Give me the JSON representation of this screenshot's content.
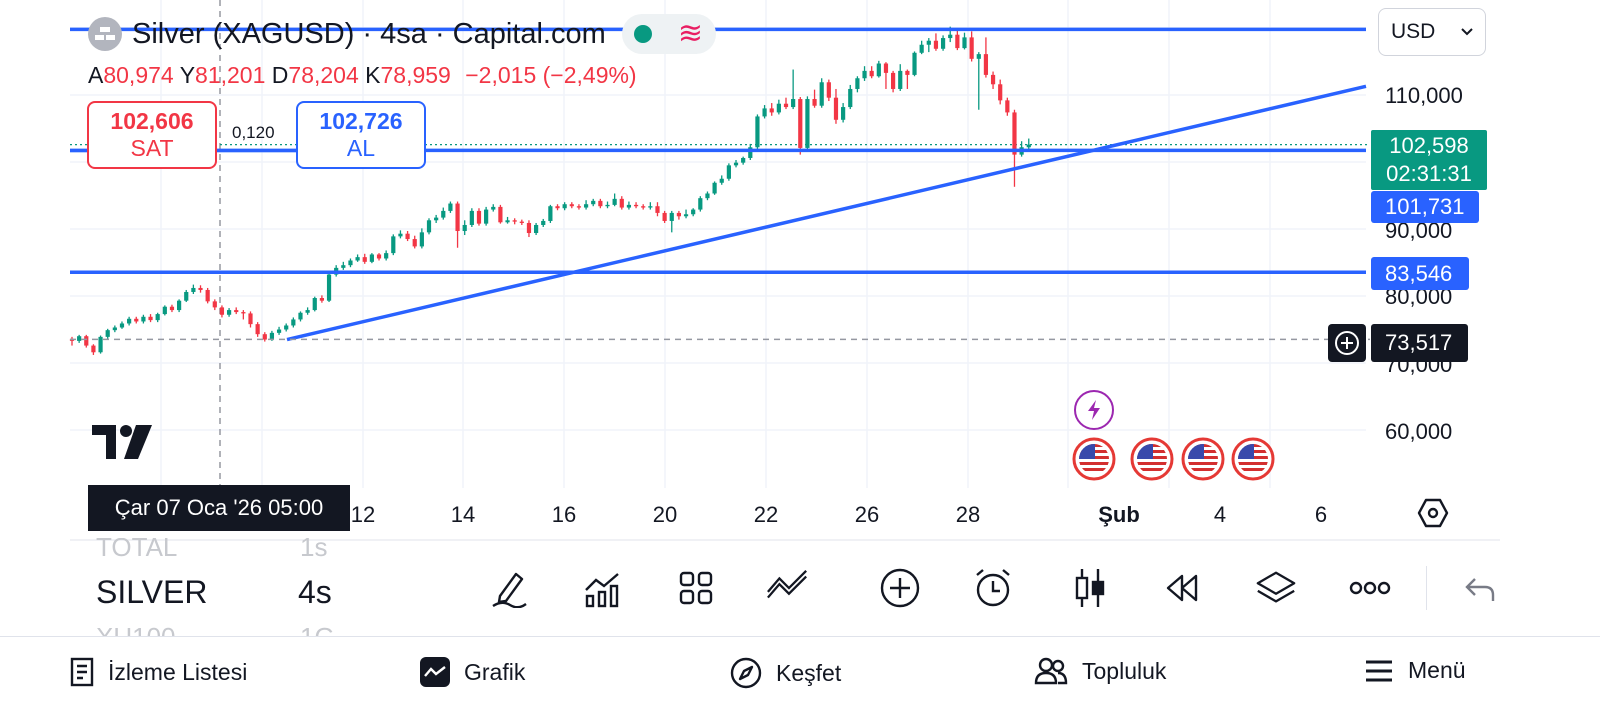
{
  "header": {
    "title": "Silver (XAGUSD) · 4sa · Capital.com",
    "status_icons": [
      "market-open-dot-icon",
      "data-wave-icon"
    ]
  },
  "ohlc": {
    "open_label": "A",
    "open": "80,974",
    "high_label": "Y",
    "high": "81,201",
    "low_label": "D",
    "low": "78,204",
    "close_label": "K",
    "close": "78,959",
    "change": "−2,015 (−2,49%)"
  },
  "trade": {
    "sell_price": "102,606",
    "sell_label": "SAT",
    "spread": "0,120",
    "buy_price": "102,726",
    "buy_label": "AL"
  },
  "currency_select": {
    "value": "USD"
  },
  "y_axis": {
    "ticks": [
      "110,000",
      "90,000",
      "80,000",
      "70,000",
      "60,000"
    ]
  },
  "price_tags": {
    "current_price": "102,598",
    "countdown": "02:31:31",
    "level_1": "101,731",
    "level_2": "83,546",
    "crosshair_price": "73,517"
  },
  "x_axis": {
    "labels": [
      "12",
      "14",
      "16",
      "20",
      "22",
      "26",
      "28",
      "Şub",
      "4",
      "6"
    ],
    "crosshair_time": "Çar 07 Oca '26   05:00"
  },
  "watchlist_peek": {
    "prev_symbol": "TOTAL",
    "prev_interval": "1s",
    "current_symbol": "SILVER",
    "current_interval": "4s",
    "next_symbol": "XU100",
    "next_interval": "1G"
  },
  "toolbar": {
    "icons": [
      "pencil-icon",
      "indicators-icon",
      "layouts-icon",
      "compare-icon",
      "add-icon",
      "alert-clock-icon",
      "candle-type-icon",
      "replay-icon",
      "layers-icon",
      "more-icon",
      "undo-icon"
    ]
  },
  "bottom_nav": {
    "watchlist": "İzleme Listesi",
    "chart": "Grafik",
    "explore": "Keşfet",
    "community": "Topluluk",
    "menu": "Menü"
  },
  "colors": {
    "up": "#089981",
    "down": "#f23645",
    "drawing_blue": "#2962ff",
    "text": "#131722"
  },
  "chart_data": {
    "type": "candlestick",
    "x_labels": [
      "12",
      "14",
      "16",
      "20",
      "22",
      "26",
      "28",
      "Şub",
      "4",
      "6"
    ],
    "y_ticks": [
      110000,
      90000,
      80000,
      70000,
      60000
    ],
    "ylim": [
      54000,
      120000
    ],
    "current_price": 102598,
    "horizontal_levels": [
      119800,
      101731,
      83546
    ],
    "crosshair_price": 73517,
    "trendline": {
      "from": {
        "x_date": "2026-01-08",
        "y": 73500
      },
      "to": {
        "x_date": "2026-02-07",
        "y": 111300
      }
    },
    "candles_4h_approx": [
      [
        73.6,
        73.3,
        72.6,
        73.9
      ],
      [
        73.3,
        74.0,
        73.0,
        74.2
      ],
      [
        74.0,
        72.6,
        72.3,
        74.2
      ],
      [
        72.6,
        71.6,
        71.2,
        72.8
      ],
      [
        71.6,
        73.9,
        71.4,
        74.1
      ],
      [
        73.9,
        74.9,
        73.6,
        75.1
      ],
      [
        74.9,
        75.3,
        74.6,
        75.6
      ],
      [
        75.3,
        75.9,
        75.1,
        76.2
      ],
      [
        75.9,
        76.6,
        75.6,
        76.9
      ],
      [
        76.6,
        76.2,
        75.9,
        76.9
      ],
      [
        76.2,
        76.9,
        75.9,
        77.2
      ],
      [
        76.9,
        76.4,
        76.1,
        77.3
      ],
      [
        76.4,
        77.3,
        76.1,
        77.5
      ],
      [
        77.3,
        78.4,
        77.1,
        78.6
      ],
      [
        78.4,
        77.9,
        77.6,
        78.7
      ],
      [
        77.9,
        79.3,
        77.6,
        79.5
      ],
      [
        79.3,
        80.6,
        79.1,
        80.9
      ],
      [
        80.6,
        81.2,
        80.3,
        81.7
      ],
      [
        81.2,
        80.9,
        80.5,
        81.6
      ],
      [
        80.9,
        79.2,
        78.9,
        81.2
      ],
      [
        79.2,
        78.3,
        77.9,
        79.5
      ],
      [
        78.3,
        77.2,
        76.8,
        78.6
      ],
      [
        77.2,
        77.9,
        76.9,
        78.2
      ],
      [
        77.9,
        77.6,
        77.3,
        78.3
      ],
      [
        77.6,
        77.4,
        76.5,
        77.9
      ],
      [
        77.4,
        75.8,
        75.3,
        77.7
      ],
      [
        75.8,
        74.3,
        73.9,
        76.1
      ],
      [
        74.3,
        73.5,
        73.2,
        74.6
      ],
      [
        73.5,
        74.5,
        73.3,
        74.8
      ],
      [
        74.5,
        75.0,
        74.2,
        75.4
      ],
      [
        75.0,
        75.6,
        74.7,
        75.9
      ],
      [
        75.6,
        76.5,
        75.3,
        76.8
      ],
      [
        76.5,
        77.5,
        76.2,
        77.7
      ],
      [
        77.5,
        77.9,
        77.2,
        78.3
      ],
      [
        77.9,
        79.7,
        77.7,
        79.9
      ],
      [
        79.7,
        79.3,
        79.0,
        80.1
      ],
      [
        79.3,
        83.2,
        79.1,
        83.5
      ],
      [
        83.2,
        84.2,
        82.9,
        84.6
      ],
      [
        84.2,
        84.6,
        83.9,
        85.1
      ],
      [
        84.6,
        85.3,
        84.3,
        85.6
      ],
      [
        85.3,
        85.8,
        85.1,
        86.2
      ],
      [
        85.8,
        85.1,
        84.8,
        86.3
      ],
      [
        85.1,
        86.2,
        84.9,
        86.4
      ],
      [
        86.2,
        85.6,
        85.3,
        86.4
      ],
      [
        85.6,
        86.4,
        85.3,
        86.8
      ],
      [
        86.4,
        88.9,
        86.1,
        89.2
      ],
      [
        88.9,
        89.3,
        88.6,
        89.8
      ],
      [
        89.3,
        88.5,
        88.2,
        89.7
      ],
      [
        88.5,
        87.4,
        87.1,
        89.0
      ],
      [
        87.4,
        89.5,
        87.1,
        90.1
      ],
      [
        89.5,
        91.3,
        89.2,
        91.6
      ],
      [
        91.3,
        91.7,
        90.9,
        92.1
      ],
      [
        91.7,
        92.7,
        91.4,
        93.2
      ],
      [
        92.7,
        93.8,
        92.4,
        94.1
      ],
      [
        93.8,
        89.7,
        87.2,
        94.1
      ],
      [
        89.7,
        90.6,
        89.1,
        91.3
      ],
      [
        90.6,
        92.7,
        90.3,
        93.1
      ],
      [
        92.7,
        90.8,
        90.5,
        93.1
      ],
      [
        90.8,
        92.9,
        90.5,
        93.3
      ],
      [
        92.9,
        93.3,
        92.6,
        93.7
      ],
      [
        93.3,
        91.0,
        90.8,
        93.6
      ],
      [
        91.0,
        91.3,
        90.8,
        91.8
      ],
      [
        91.3,
        91.1,
        90.7,
        91.6
      ],
      [
        91.1,
        90.9,
        90.6,
        91.4
      ],
      [
        90.9,
        89.4,
        88.8,
        91.3
      ],
      [
        89.4,
        90.6,
        89.1,
        90.9
      ],
      [
        90.6,
        91.2,
        90.3,
        91.5
      ],
      [
        91.2,
        93.4,
        90.9,
        93.6
      ],
      [
        93.4,
        93.1,
        92.8,
        93.7
      ],
      [
        93.1,
        93.7,
        92.8,
        94.0
      ],
      [
        93.7,
        93.4,
        93.1,
        94.0
      ],
      [
        93.4,
        93.2,
        92.9,
        93.7
      ],
      [
        93.2,
        93.7,
        92.9,
        94.3
      ],
      [
        93.7,
        94.2,
        93.4,
        94.5
      ],
      [
        94.2,
        93.4,
        93.1,
        94.5
      ],
      [
        93.4,
        93.6,
        93.1,
        94.1
      ],
      [
        93.6,
        94.5,
        93.4,
        95.3
      ],
      [
        94.5,
        93.2,
        92.9,
        94.9
      ],
      [
        93.2,
        93.6,
        92.9,
        94.1
      ],
      [
        93.6,
        93.4,
        93.1,
        94.0
      ],
      [
        93.4,
        93.2,
        92.9,
        93.7
      ],
      [
        93.2,
        93.4,
        92.9,
        94.0
      ],
      [
        93.4,
        92.4,
        91.9,
        94.0
      ],
      [
        92.4,
        91.2,
        90.9,
        92.7
      ],
      [
        91.2,
        92.4,
        89.5,
        92.7
      ],
      [
        92.4,
        91.9,
        91.4,
        92.7
      ],
      [
        91.9,
        92.2,
        91.6,
        92.9
      ],
      [
        92.2,
        92.9,
        91.9,
        93.1
      ],
      [
        92.9,
        94.6,
        92.6,
        94.9
      ],
      [
        94.6,
        95.3,
        94.3,
        95.6
      ],
      [
        95.3,
        96.9,
        95.1,
        97.1
      ],
      [
        96.9,
        97.5,
        96.6,
        98.0
      ],
      [
        97.5,
        99.5,
        97.2,
        99.8
      ],
      [
        99.5,
        99.9,
        99.2,
        100.3
      ],
      [
        99.9,
        100.6,
        99.6,
        100.8
      ],
      [
        100.6,
        102.2,
        100.3,
        102.7
      ],
      [
        102.2,
        106.8,
        101.9,
        107.1
      ],
      [
        106.8,
        108.0,
        106.5,
        108.5
      ],
      [
        108.0,
        107.4,
        106.9,
        108.8
      ],
      [
        107.4,
        108.7,
        107.1,
        109.3
      ],
      [
        108.7,
        108.2,
        107.9,
        109.6
      ],
      [
        108.2,
        109.4,
        107.9,
        113.8
      ],
      [
        109.4,
        102.1,
        101.1,
        109.7
      ],
      [
        102.1,
        109.4,
        101.9,
        109.8
      ],
      [
        109.4,
        108.4,
        108.1,
        110.8
      ],
      [
        108.4,
        111.9,
        108.1,
        112.5
      ],
      [
        111.9,
        109.6,
        109.1,
        112.3
      ],
      [
        109.6,
        106.3,
        105.7,
        110.9
      ],
      [
        106.3,
        108.2,
        105.9,
        108.8
      ],
      [
        108.2,
        110.9,
        107.9,
        111.5
      ],
      [
        110.9,
        112.5,
        110.4,
        112.8
      ],
      [
        112.5,
        113.6,
        112.1,
        114.3
      ],
      [
        113.6,
        112.8,
        112.5,
        114.3
      ],
      [
        112.8,
        114.7,
        112.6,
        115.1
      ],
      [
        114.7,
        113.3,
        110.9,
        114.9
      ],
      [
        113.3,
        110.9,
        110.4,
        113.6
      ],
      [
        110.9,
        113.6,
        110.6,
        114.6
      ],
      [
        113.6,
        113.0,
        110.9,
        113.8
      ],
      [
        113.0,
        116.3,
        112.8,
        116.5
      ],
      [
        116.3,
        117.5,
        116.1,
        118.1
      ],
      [
        117.5,
        118.1,
        116.4,
        118.5
      ],
      [
        118.1,
        116.9,
        116.6,
        119.2
      ],
      [
        116.9,
        118.5,
        116.6,
        118.9
      ],
      [
        118.5,
        119.0,
        117.9,
        120.2
      ],
      [
        119.0,
        117.0,
        116.7,
        120.0
      ],
      [
        117.0,
        118.6,
        116.8,
        119.3
      ],
      [
        118.6,
        115.4,
        115.0,
        119.5
      ],
      [
        115.4,
        116.1,
        107.8,
        116.4
      ],
      [
        116.1,
        113.0,
        112.6,
        118.6
      ],
      [
        113.0,
        111.6,
        110.9,
        113.5
      ],
      [
        111.6,
        109.2,
        108.6,
        112.3
      ],
      [
        109.2,
        107.4,
        106.9,
        109.6
      ],
      [
        107.4,
        101.1,
        96.3,
        107.8
      ],
      [
        101.1,
        102.2,
        100.8,
        103.1
      ],
      [
        102.2,
        102.6,
        101.5,
        103.5
      ]
    ]
  }
}
